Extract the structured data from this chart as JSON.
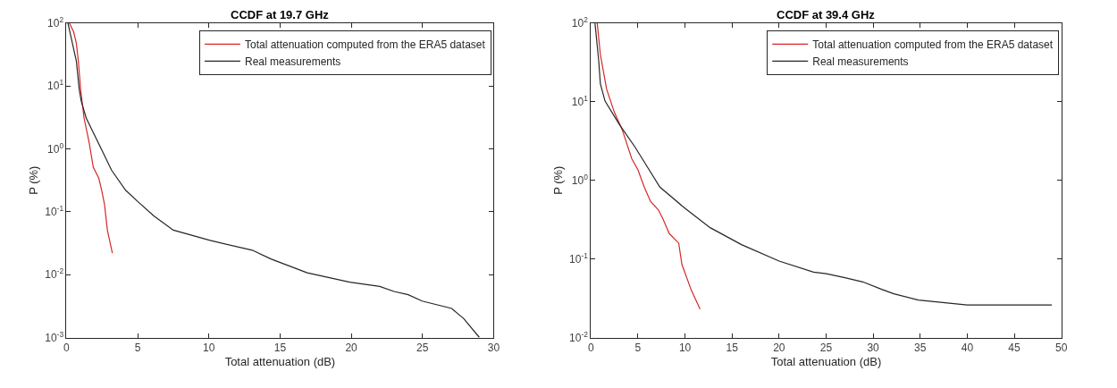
{
  "chart_data": [
    {
      "type": "line",
      "title": "CCDF at 19.7 GHz",
      "xlabel": "Total attenuation (dB)",
      "ylabel": "P (%)",
      "log": "y",
      "legend": "top right",
      "xlim": [
        0,
        30
      ],
      "xticks": [
        0,
        5,
        10,
        15,
        20,
        25,
        30
      ],
      "ylim": [
        0.001,
        100
      ],
      "yticks": [
        {
          "value": 0.001,
          "label": "10$^{-3}$"
        },
        {
          "value": 0.01,
          "label": "10$^{-2}$"
        },
        {
          "value": 0.1,
          "label": "10$^{-1}$"
        },
        {
          "value": 1,
          "label": "10$^{0}$"
        },
        {
          "value": 10,
          "label": "10$^{1}$"
        },
        {
          "value": 100,
          "label": "10$^{2}$"
        }
      ],
      "series": [
        {
          "name": "Total attenuation computed from the ERA5 dataset",
          "color": "#d62728",
          "x": [
            0.2,
            0.5,
            0.69,
            0.83,
            0.99,
            1.23,
            1.58,
            1.88,
            2.27,
            2.47,
            2.67,
            2.87,
            3.22
          ],
          "values": [
            100,
            73,
            48,
            25,
            8.9,
            3.1,
            1.3,
            0.51,
            0.34,
            0.22,
            0.13,
            0.051,
            0.022
          ]
        },
        {
          "name": "Real measurements",
          "color": "#262626",
          "x": [
            0.1,
            0.69,
            0.89,
            1.03,
            1.38,
            2.37,
            3.16,
            4.15,
            5,
            6.13,
            7.5,
            10.08,
            13.04,
            14.35,
            16.9,
            19.9,
            22,
            23,
            24,
            24.98,
            27.05,
            27.9,
            29
          ],
          "values": [
            100,
            25,
            8.9,
            5.8,
            3.1,
            1.08,
            0.46,
            0.22,
            0.146,
            0.086,
            0.051,
            0.035,
            0.0245,
            0.0178,
            0.0107,
            0.0076,
            0.0065,
            0.0054,
            0.0048,
            0.0038,
            0.0029,
            0.002,
            0.001
          ]
        }
      ]
    },
    {
      "type": "line",
      "title": "CCDF at 39.4 GHz",
      "xlabel": "Total attenuation (dB)",
      "ylabel": "P (%)",
      "log": "y",
      "legend": "top right",
      "xlim": [
        0,
        50
      ],
      "xticks": [
        0,
        5,
        10,
        15,
        20,
        25,
        30,
        35,
        40,
        45,
        50
      ],
      "ylim": [
        0.01,
        100
      ],
      "yticks": [
        {
          "value": 0.01,
          "label": "10$^{-2}$"
        },
        {
          "value": 0.1,
          "label": "10$^{-1}$"
        },
        {
          "value": 1,
          "label": "10$^{0}$"
        },
        {
          "value": 10,
          "label": "10$^{1}$"
        },
        {
          "value": 100,
          "label": "10$^{2}$"
        }
      ],
      "series": [
        {
          "name": "Total attenuation computed from the ERA5 dataset",
          "color": "#d62728",
          "x": [
            0.67,
            1.0,
            1.67,
            2.5,
            3.33,
            4.33,
            5,
            5.67,
            6.33,
            7.17,
            7.67,
            8.33,
            9.33,
            9.67,
            10.67,
            11.6
          ],
          "values": [
            100,
            40,
            14.4,
            7.3,
            4.4,
            1.9,
            1.36,
            0.82,
            0.54,
            0.42,
            0.32,
            0.21,
            0.159,
            0.085,
            0.04,
            0.023
          ]
        },
        {
          "name": "Real measurements",
          "color": "#262626",
          "x": [
            0.43,
            0.83,
            1.0,
            1.5,
            3.0,
            4.67,
            6,
            7.33,
            10,
            12.67,
            16,
            20,
            23.66,
            25,
            26.9,
            28.9,
            30.9,
            32.2,
            34.8,
            40,
            49
          ],
          "values": [
            100,
            33,
            17,
            10.2,
            5.2,
            2.67,
            1.48,
            0.82,
            0.44,
            0.25,
            0.152,
            0.094,
            0.068,
            0.065,
            0.058,
            0.051,
            0.041,
            0.036,
            0.03,
            0.026,
            0.026
          ]
        }
      ]
    }
  ]
}
